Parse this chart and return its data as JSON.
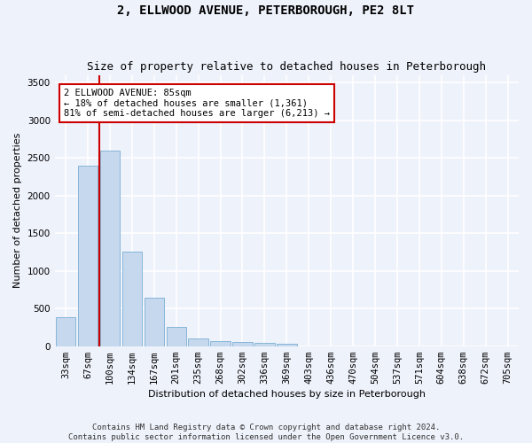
{
  "title": "2, ELLWOOD AVENUE, PETERBOROUGH, PE2 8LT",
  "subtitle": "Size of property relative to detached houses in Peterborough",
  "xlabel": "Distribution of detached houses by size in Peterborough",
  "ylabel": "Number of detached properties",
  "footer": "Contains HM Land Registry data © Crown copyright and database right 2024.\nContains public sector information licensed under the Open Government Licence v3.0.",
  "bar_labels": [
    "33sqm",
    "67sqm",
    "100sqm",
    "134sqm",
    "167sqm",
    "201sqm",
    "235sqm",
    "268sqm",
    "302sqm",
    "336sqm",
    "369sqm",
    "403sqm",
    "436sqm",
    "470sqm",
    "504sqm",
    "537sqm",
    "571sqm",
    "604sqm",
    "638sqm",
    "672sqm",
    "705sqm"
  ],
  "bar_values": [
    390,
    2400,
    2600,
    1250,
    640,
    260,
    100,
    65,
    60,
    45,
    30,
    0,
    0,
    0,
    0,
    0,
    0,
    0,
    0,
    0,
    0
  ],
  "bar_color": "#c5d8ee",
  "bar_edge_color": "#7aafd4",
  "vline_x": 1.5,
  "vline_color": "#cc0000",
  "annotation_text_line1": "2 ELLWOOD AVENUE: 85sqm",
  "annotation_text_line2": "← 18% of detached houses are smaller (1,361)",
  "annotation_text_line3": "81% of semi-detached houses are larger (6,213) →",
  "ylim": [
    0,
    3600
  ],
  "yticks": [
    0,
    500,
    1000,
    1500,
    2000,
    2500,
    3000,
    3500
  ],
  "background_color": "#eef2fb",
  "grid_color": "#ffffff",
  "annotation_box_facecolor": "#ffffff",
  "annotation_box_edgecolor": "#cc0000",
  "title_fontsize": 10,
  "subtitle_fontsize": 9,
  "ylabel_fontsize": 8,
  "xlabel_fontsize": 8,
  "tick_fontsize": 7.5,
  "footer_fontsize": 6.5
}
